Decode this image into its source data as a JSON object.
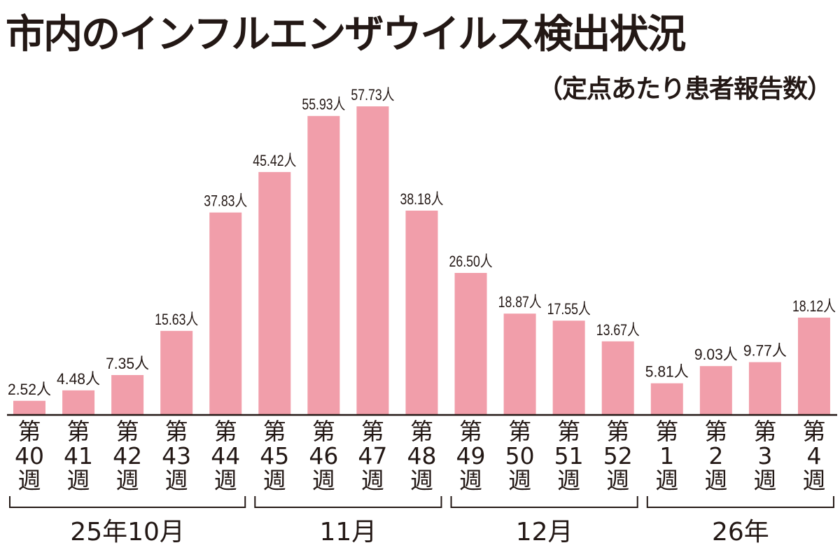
{
  "chart_data": {
    "type": "bar",
    "title": "市内のインフルエンザウイルス検出状況",
    "subtitle": "（定点あたり患者報告数）",
    "categories": [
      {
        "prefix": "第",
        "num": "40",
        "suffix": "週"
      },
      {
        "prefix": "第",
        "num": "41",
        "suffix": "週"
      },
      {
        "prefix": "第",
        "num": "42",
        "suffix": "週"
      },
      {
        "prefix": "第",
        "num": "43",
        "suffix": "週"
      },
      {
        "prefix": "第",
        "num": "44",
        "suffix": "週"
      },
      {
        "prefix": "第",
        "num": "45",
        "suffix": "週"
      },
      {
        "prefix": "第",
        "num": "46",
        "suffix": "週"
      },
      {
        "prefix": "第",
        "num": "47",
        "suffix": "週"
      },
      {
        "prefix": "第",
        "num": "48",
        "suffix": "週"
      },
      {
        "prefix": "第",
        "num": "49",
        "suffix": "週"
      },
      {
        "prefix": "第",
        "num": "50",
        "suffix": "週"
      },
      {
        "prefix": "第",
        "num": "51",
        "suffix": "週"
      },
      {
        "prefix": "第",
        "num": "52",
        "suffix": "週"
      },
      {
        "prefix": "第",
        "num": "1",
        "suffix": "週"
      },
      {
        "prefix": "第",
        "num": "2",
        "suffix": "週"
      },
      {
        "prefix": "第",
        "num": "3",
        "suffix": "週"
      },
      {
        "prefix": "第",
        "num": "4",
        "suffix": "週"
      }
    ],
    "values": [
      2.52,
      4.48,
      7.35,
      15.63,
      37.83,
      45.42,
      55.93,
      57.73,
      38.18,
      26.5,
      18.87,
      17.55,
      13.67,
      5.81,
      9.03,
      9.77,
      18.12
    ],
    "data_labels": [
      "2.52人",
      "4.48人",
      "7.35人",
      "15.63人",
      "37.83人",
      "45.42人",
      "55.93人",
      "57.73人",
      "38.18人",
      "26.50人",
      "18.87人",
      "17.55人",
      "13.67人",
      "5.81人",
      "9.03人",
      "9.77人",
      "18.12人"
    ],
    "groups": [
      {
        "label": "25年10月",
        "from": 0,
        "to": 4
      },
      {
        "label": "11月",
        "from": 5,
        "to": 8
      },
      {
        "label": "12月",
        "from": 9,
        "to": 12
      },
      {
        "label": "26年",
        "from": 13,
        "to": 16
      }
    ],
    "ylim": [
      0,
      60
    ],
    "grid": false,
    "bar_color": "#f19eaa"
  }
}
